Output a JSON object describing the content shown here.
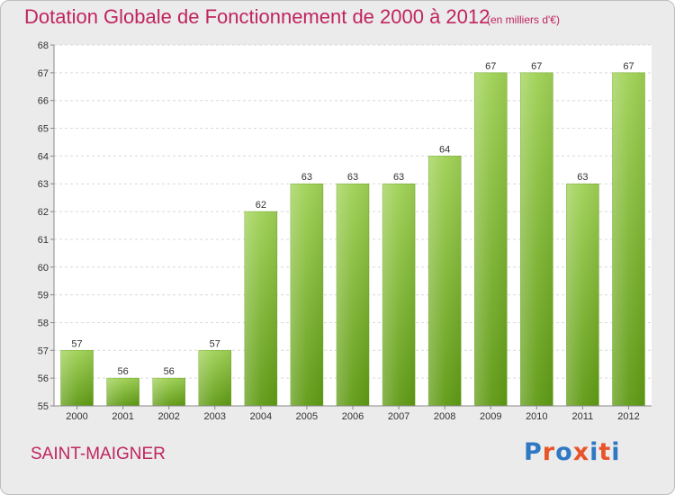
{
  "header": {
    "title": "Dotation Globale de Fonctionnement de 2000 à 2012",
    "unit": "(en milliers d'€)"
  },
  "footer": {
    "commune": "SAINT-MAIGNER",
    "logo": "Proxiti"
  },
  "colors": {
    "title": "#c0245f",
    "bar_top": "#9fd155",
    "bar_bottom": "#5f9a14",
    "logo_letters": [
      "#2f78c4",
      "#e8542b",
      "#2f78c4",
      "#e8542b",
      "#2f78c4",
      "#e8542b",
      "#2f78c4"
    ]
  },
  "chart_data": {
    "type": "bar",
    "title": "Dotation Globale de Fonctionnement de 2000 à 2012",
    "subtitle": "(en milliers d'€)",
    "categories": [
      "2000",
      "2001",
      "2002",
      "2003",
      "2004",
      "2005",
      "2006",
      "2007",
      "2008",
      "2009",
      "2010",
      "2011",
      "2012"
    ],
    "values": [
      57,
      56,
      56,
      57,
      62,
      63,
      63,
      63,
      64,
      67,
      67,
      63,
      67
    ],
    "ylim": [
      55,
      68
    ],
    "yticks": [
      55,
      56,
      57,
      58,
      59,
      60,
      61,
      62,
      63,
      64,
      65,
      66,
      67,
      68
    ],
    "grid": true,
    "xlabel": "",
    "ylabel": ""
  }
}
